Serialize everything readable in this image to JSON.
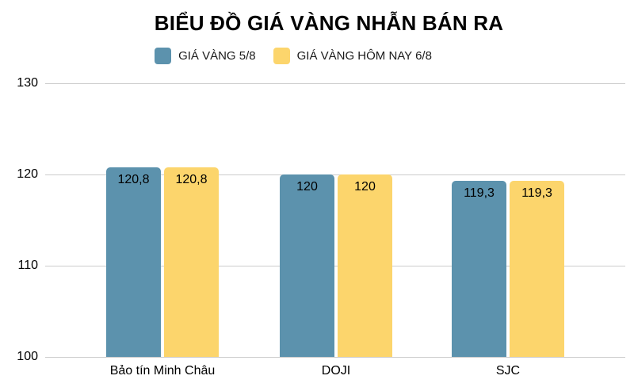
{
  "chart_data": {
    "type": "bar",
    "title": "BIỂU ĐỒ GIÁ VÀNG NHẪN BÁN RA",
    "categories": [
      "Bảo tín Minh Châu",
      "DOJI",
      "SJC"
    ],
    "series": [
      {
        "name": "GIÁ VÀNG 5/8",
        "color": "#5C92AD",
        "values": [
          120.8,
          120,
          119.3
        ],
        "labels": [
          "120,8",
          "120",
          "119,3"
        ]
      },
      {
        "name": "GIÁ VÀNG HÔM NAY 6/8",
        "color": "#FCD56C",
        "values": [
          120.8,
          120,
          119.3
        ],
        "labels": [
          "120,8",
          "120",
          "119,3"
        ]
      }
    ],
    "ylim": [
      100,
      130
    ],
    "yticks": [
      100,
      110,
      120,
      130
    ],
    "grid": true,
    "legend_position": "top",
    "gridline_color": "#cccccc",
    "text_color": "#000000",
    "background_color": "#ffffff"
  }
}
